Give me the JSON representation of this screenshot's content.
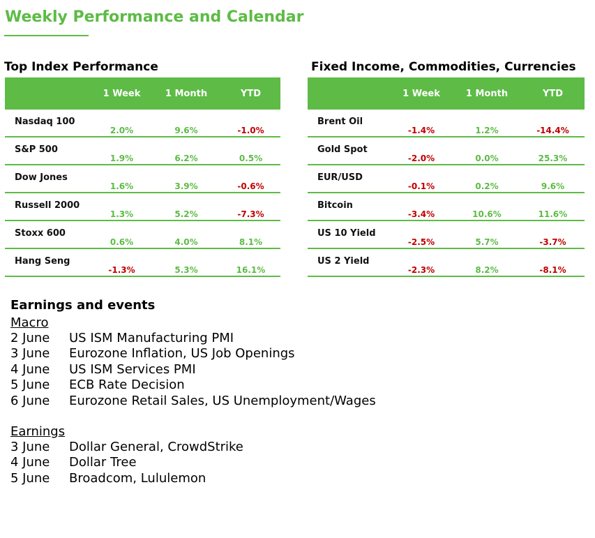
{
  "title": "Weekly Performance and Calendar",
  "colors": {
    "accent": "#5dbb46",
    "positive": "#5dbb46",
    "negative": "#c00000"
  },
  "index_table": {
    "title": "Top Index Performance",
    "columns": [
      "",
      "1 Week",
      "1 Month",
      "YTD"
    ],
    "rows": [
      {
        "name": "Nasdaq 100",
        "week": "2.0%",
        "month": "9.6%",
        "ytd": "-1.0%"
      },
      {
        "name": "S&P 500",
        "week": "1.9%",
        "month": "6.2%",
        "ytd": "0.5%"
      },
      {
        "name": "Dow Jones",
        "week": "1.6%",
        "month": "3.9%",
        "ytd": "-0.6%"
      },
      {
        "name": "Russell 2000",
        "week": "1.3%",
        "month": "5.2%",
        "ytd": "-7.3%"
      },
      {
        "name": "Stoxx 600",
        "week": "0.6%",
        "month": "4.0%",
        "ytd": "8.1%"
      },
      {
        "name": "Hang Seng",
        "week": "-1.3%",
        "month": "5.3%",
        "ytd": "16.1%"
      }
    ]
  },
  "fi_table": {
    "title": "Fixed Income, Commodities, Currencies",
    "columns": [
      "",
      "1 Week",
      "1 Month",
      "YTD"
    ],
    "rows": [
      {
        "name": "Brent Oil",
        "week": "-1.4%",
        "month": "1.2%",
        "ytd": "-14.4%"
      },
      {
        "name": "Gold Spot",
        "week": "-2.0%",
        "month": "0.0%",
        "ytd": "25.3%"
      },
      {
        "name": "EUR/USD",
        "week": "-0.1%",
        "month": "0.2%",
        "ytd": "9.6%"
      },
      {
        "name": "Bitcoin",
        "week": "-3.4%",
        "month": "10.6%",
        "ytd": "11.6%"
      },
      {
        "name": "US 10 Yield",
        "week": "-2.5%",
        "month": "5.7%",
        "ytd": "-3.7%"
      },
      {
        "name": "US 2 Yield",
        "week": "-2.3%",
        "month": "8.2%",
        "ytd": "-8.1%"
      }
    ]
  },
  "events": {
    "title": "Earnings and events",
    "macro": {
      "title": "Macro",
      "items": [
        {
          "date": "2 June",
          "event": "US ISM Manufacturing PMI"
        },
        {
          "date": "3 June",
          "event": "Eurozone Inflation, US Job Openings"
        },
        {
          "date": "4 June",
          "event": "US ISM Services PMI"
        },
        {
          "date": "5 June",
          "event": "ECB Rate Decision"
        },
        {
          "date": "6 June",
          "event": "Eurozone Retail Sales, US Unemployment/Wages"
        }
      ]
    },
    "earnings": {
      "title": "Earnings",
      "items": [
        {
          "date": "3 June",
          "event": "Dollar General, CrowdStrike"
        },
        {
          "date": "4 June",
          "event": "Dollar Tree"
        },
        {
          "date": "5 June",
          "event": "Broadcom, Lululemon"
        }
      ]
    }
  }
}
